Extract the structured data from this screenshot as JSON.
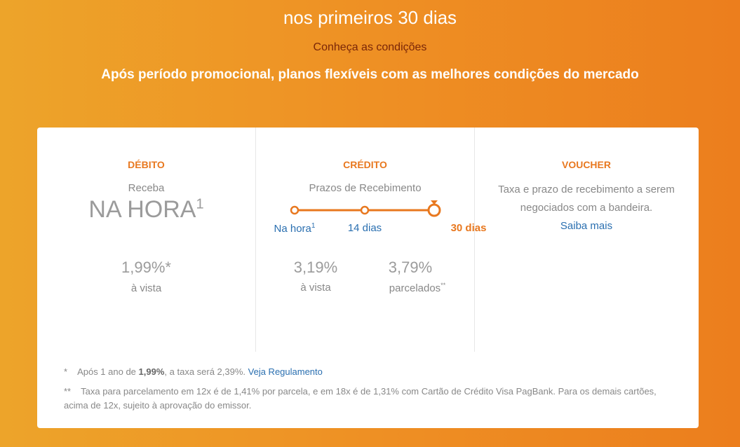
{
  "hero": {
    "title": "nos primeiros 30 dias",
    "conditions_link": "Conheça as condições",
    "subtitle": "Após período promocional, planos flexíveis com as melhores condições do mercado"
  },
  "debit": {
    "title": "DÉBITO",
    "receive_label": "Receba",
    "receive_value": "NA HORA",
    "receive_sup": "1",
    "rate": "1,99%*",
    "rate_label": "à vista"
  },
  "credit": {
    "title": "CRÉDITO",
    "terms_label": "Prazos de Recebimento",
    "timeline": [
      {
        "label": "Na hora",
        "sup": "1"
      },
      {
        "label": "14 dias",
        "sup": ""
      },
      {
        "label": "30 dias",
        "sup": "",
        "active": true
      }
    ],
    "rate_cash": "3,19%",
    "rate_cash_label": "à vista",
    "rate_installments": "3,79%",
    "rate_installments_label": "parcelados",
    "rate_installments_sup": "**"
  },
  "voucher": {
    "title": "VOUCHER",
    "text": "Taxa e prazo de recebimento a serem negociados com a bandeira.",
    "link": "Saiba mais"
  },
  "footnotes": {
    "fn1_marker": "*",
    "fn1_pre": "Após 1 ano de ",
    "fn1_bold": "1,99%",
    "fn1_post": ", a taxa será 2,39%. ",
    "fn1_link": "Veja Regulamento",
    "fn2_marker": "**",
    "fn2_text": "Taxa para parcelamento em 12x é de 1,41% por parcela, e em 18x é de 1,31% com Cartão de Crédito Visa PagBank. Para os demais cartões, acima de 12x, sujeito à aprovação do emissor."
  },
  "colors": {
    "accent": "#e8781f",
    "link": "#2a6fb0",
    "dark_link": "#7a2608"
  }
}
